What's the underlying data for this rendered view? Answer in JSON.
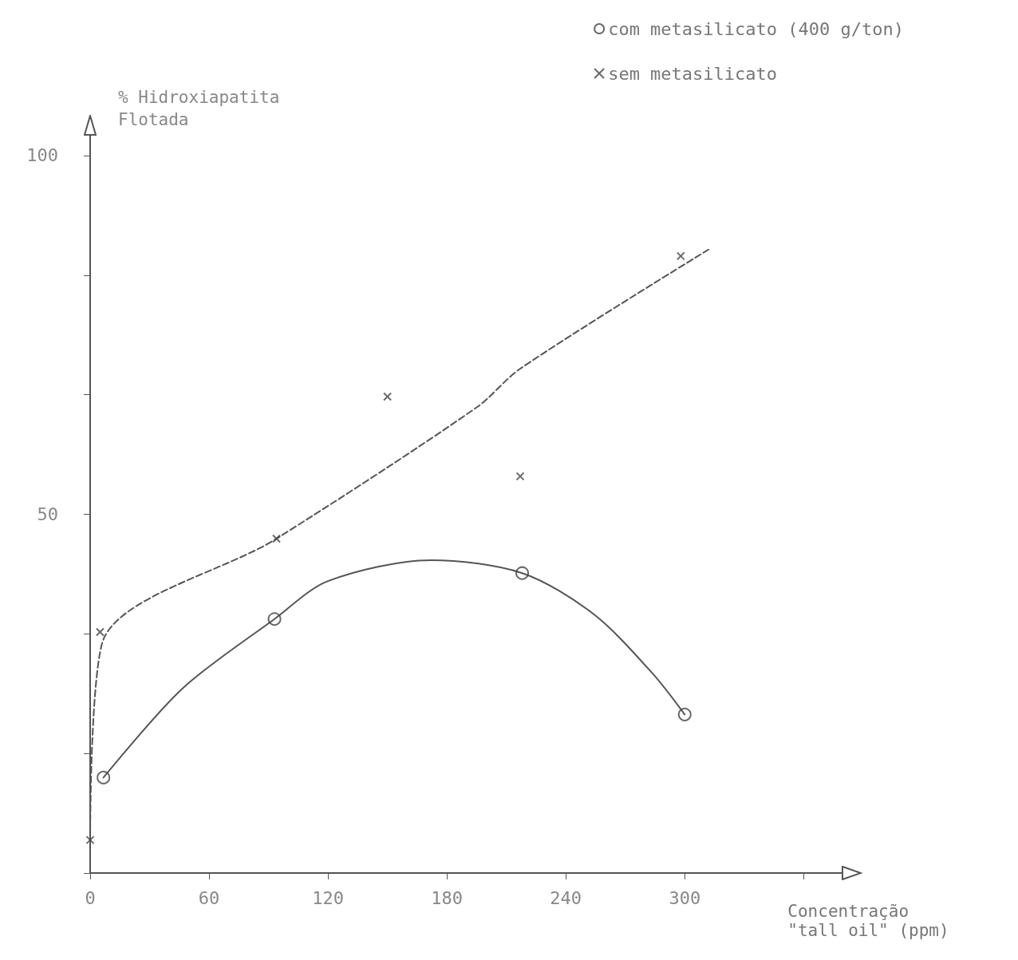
{
  "chart_data": {
    "type": "scatter",
    "xlabel": "Concentração\n\"tall oil\" (ppm)",
    "ylabel": "% Hidroxiapatita\nFlotada",
    "xlim": [
      0,
      380
    ],
    "ylim": [
      0,
      103
    ],
    "xticks": [
      0,
      60,
      120,
      180,
      240,
      300,
      {
        "value": 360,
        "label": null
      }
    ],
    "yticks": [
      {
        "value": 0,
        "label": null
      },
      {
        "value": 16.7,
        "label": null
      },
      {
        "value": 33.3,
        "label": null
      },
      50,
      {
        "value": 66.7,
        "label": null
      },
      {
        "value": 83.3,
        "label": null
      },
      100
    ],
    "grid": false,
    "legend": "top right",
    "series": [
      {
        "name": "com metasilicato (400 g/ton)",
        "marker": "circle",
        "color": "#444444",
        "x": [
          6.7,
          93,
          218,
          300
        ],
        "values": [
          13.3,
          35.4,
          41.8,
          22.1
        ]
      },
      {
        "name": "sem metasilicato",
        "marker": "cross",
        "color": "#444444",
        "x": [
          0,
          5,
          94,
          150,
          217,
          298
        ],
        "values": [
          4.6,
          33.6,
          46.6,
          66.4,
          55.3,
          86.0
        ]
      },
      {
        "type": "line",
        "marker": "none",
        "line_style": "solid",
        "color": "#555555",
        "x": [
          6.7,
          46.5,
          93,
          120,
          172,
          218,
          254,
          283.5,
          300
        ],
        "values": [
          13.3,
          25.7,
          35.4,
          40.7,
          43.6,
          41.8,
          36.1,
          27.9,
          22.1
        ]
      },
      {
        "type": "line",
        "marker": "none",
        "line_style": "dashed",
        "color": "#555555",
        "x": [
          0,
          6,
          94,
          195,
          217,
          312
        ],
        "values": [
          4.6,
          32,
          46.6,
          64.9,
          70.3,
          86.9
        ]
      }
    ]
  }
}
